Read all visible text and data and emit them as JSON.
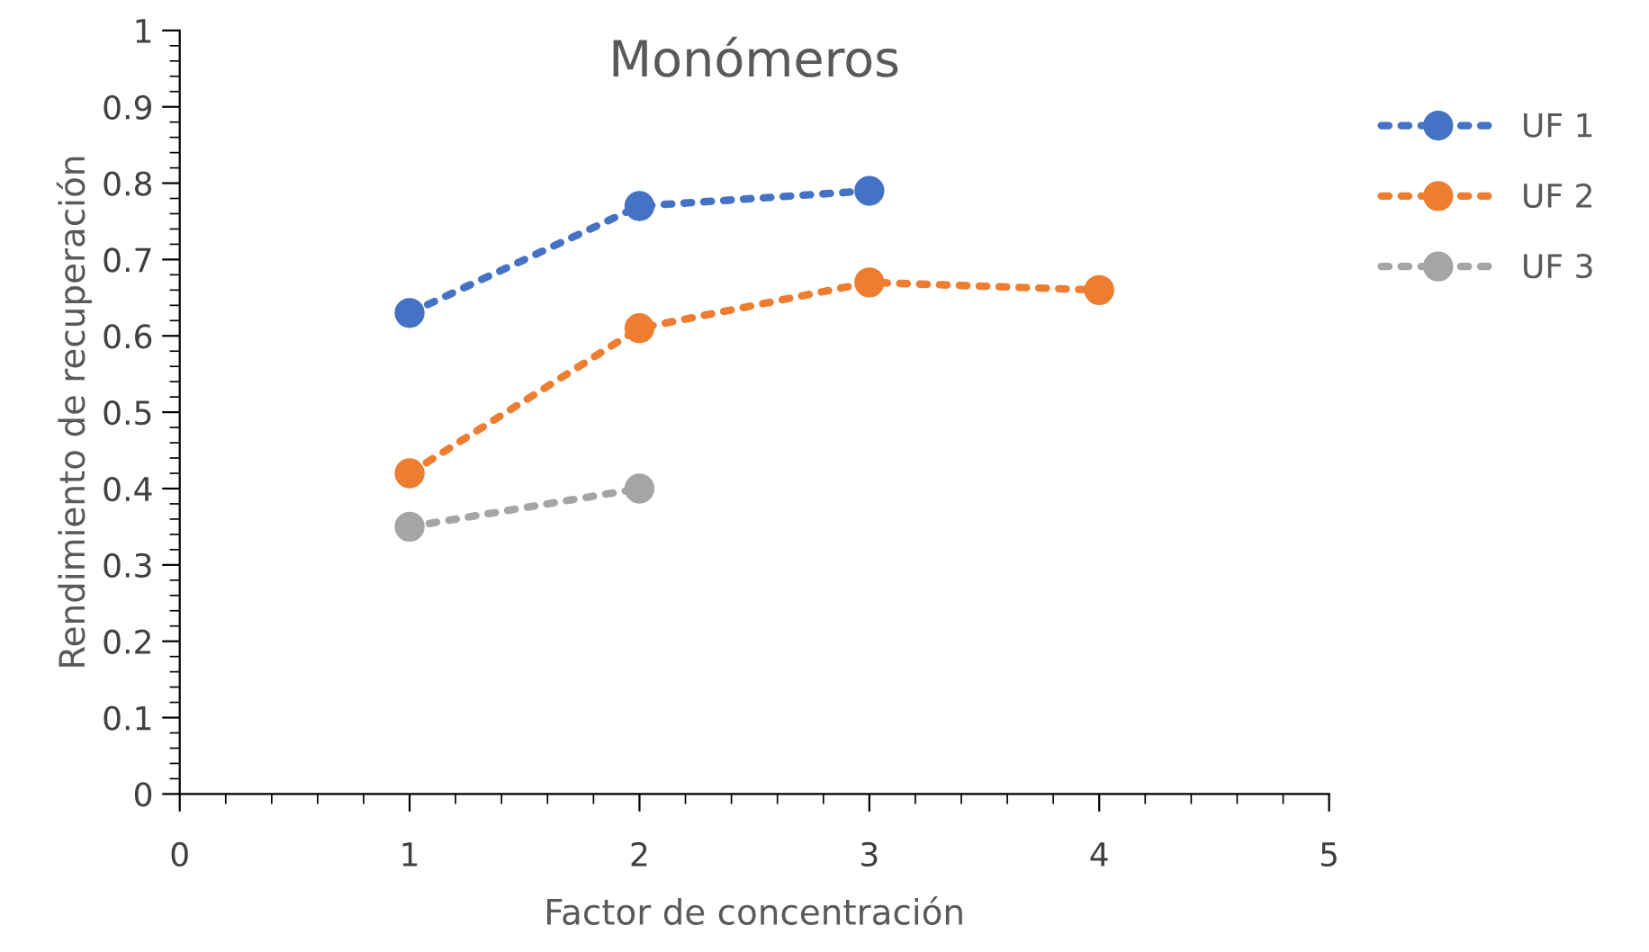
{
  "chart_data": {
    "type": "line",
    "title": "Monómeros",
    "xlabel": "Factor de concentración",
    "ylabel": "Rendimiento de recuperación",
    "series": [
      {
        "name": "UF 1",
        "color": "#4472c4",
        "x": [
          1,
          2,
          3
        ],
        "values": [
          0.63,
          0.77,
          0.79
        ]
      },
      {
        "name": "UF 2",
        "color": "#ed7d31",
        "x": [
          1,
          2,
          3,
          4
        ],
        "values": [
          0.42,
          0.61,
          0.67,
          0.66
        ]
      },
      {
        "name": "UF 3",
        "color": "#a5a5a5",
        "x": [
          1,
          2
        ],
        "values": [
          0.35,
          0.4
        ]
      }
    ],
    "xlim": [
      0,
      5
    ],
    "xticks": [
      0,
      1,
      2,
      3,
      4,
      5
    ],
    "ylim": [
      0,
      1
    ],
    "yticks": [
      0,
      0.1,
      0.2,
      0.3,
      0.4,
      0.5,
      0.6,
      0.7,
      0.8,
      0.9,
      1
    ],
    "grid": false,
    "legend": "right",
    "marker": "circle",
    "line_style": "dotted"
  }
}
